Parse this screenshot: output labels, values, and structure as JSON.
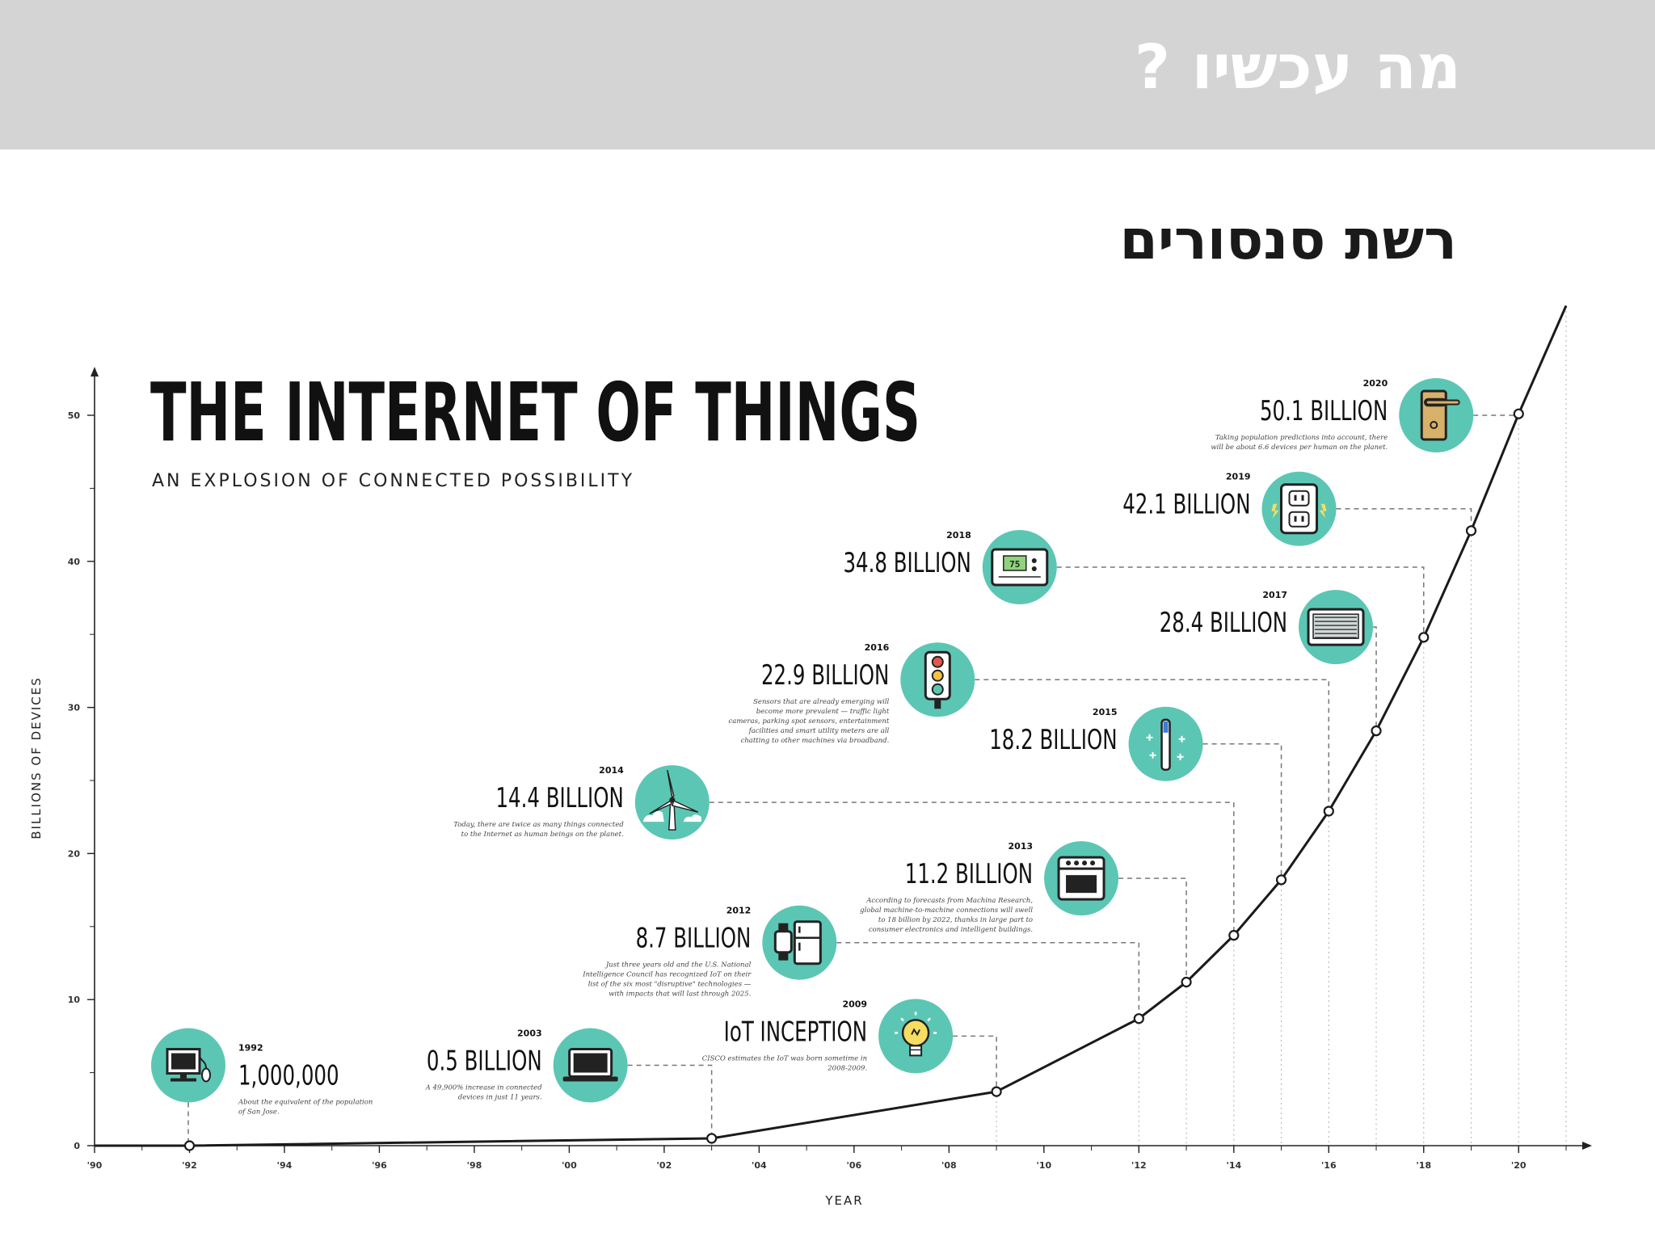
{
  "header": {
    "title": "מה עכשיו ?"
  },
  "slide": {
    "subtitle": "רשת סנסורים"
  },
  "colors": {
    "circle": "#5cc6b4",
    "line": "#1a1a1a",
    "icon_dark": "#222222"
  },
  "chart_data": {
    "type": "line",
    "title": "THE INTERNET OF THINGS",
    "subtitle": "AN EXPLOSION OF CONNECTED POSSIBILITY",
    "xlabel": "YEAR",
    "ylabel": "BILLIONS OF DEVICES",
    "xlim": [
      1990,
      2021
    ],
    "ylim": [
      0,
      50
    ],
    "grid": false,
    "x_ticks": [
      {
        "value": 1990,
        "label": "'90"
      },
      {
        "value": 1992,
        "label": "'92"
      },
      {
        "value": 1994,
        "label": "'94"
      },
      {
        "value": 1996,
        "label": "'96"
      },
      {
        "value": 1998,
        "label": "'98"
      },
      {
        "value": 2000,
        "label": "'00"
      },
      {
        "value": 2002,
        "label": "'02"
      },
      {
        "value": 2004,
        "label": "'04"
      },
      {
        "value": 2006,
        "label": "'06"
      },
      {
        "value": 2008,
        "label": "'08"
      },
      {
        "value": 2010,
        "label": "'10"
      },
      {
        "value": 2012,
        "label": "'12"
      },
      {
        "value": 2014,
        "label": "'14"
      },
      {
        "value": 2016,
        "label": "'16"
      },
      {
        "value": 2018,
        "label": "'18"
      },
      {
        "value": 2020,
        "label": "'20"
      }
    ],
    "y_ticks": [
      {
        "value": 0,
        "label": "0"
      },
      {
        "value": 10,
        "label": "10"
      },
      {
        "value": 20,
        "label": "20"
      },
      {
        "value": 30,
        "label": "30"
      },
      {
        "value": 40,
        "label": "40"
      },
      {
        "value": 50,
        "label": "50"
      }
    ],
    "points": [
      {
        "x": 1992,
        "y": 0.001
      },
      {
        "x": 2003,
        "y": 0.5
      },
      {
        "x": 2009,
        "y": 3.7
      },
      {
        "x": 2012,
        "y": 8.7
      },
      {
        "x": 2013,
        "y": 11.2
      },
      {
        "x": 2014,
        "y": 14.4
      },
      {
        "x": 2015,
        "y": 18.2
      },
      {
        "x": 2016,
        "y": 22.9
      },
      {
        "x": 2017,
        "y": 28.4
      },
      {
        "x": 2018,
        "y": 34.8
      },
      {
        "x": 2019,
        "y": 42.1
      },
      {
        "x": 2020,
        "y": 50.1
      }
    ],
    "line_start": {
      "x": 1990,
      "y": 0
    },
    "line_end": {
      "x": 2021,
      "y": 57.5
    },
    "annotations": [
      {
        "x": 1992,
        "y": 0.001,
        "year": "1992",
        "value": "1,000,000",
        "icon": "computer-icon",
        "side": "right",
        "cy": 5.5,
        "ty": 4.5,
        "note": [
          "About the equivalent of the population",
          "of San Jose."
        ]
      },
      {
        "x": 2003,
        "y": 0.5,
        "year": "2003",
        "value": "0.5 BILLION",
        "icon": "laptop-icon",
        "side": "left",
        "cy": 5.5,
        "ty": 5.5,
        "note": [
          "A 49,900% increase in connected",
          "devices in just 11 years."
        ]
      },
      {
        "x": 2009,
        "y": 3.7,
        "year": "2009",
        "value": "IoT INCEPTION",
        "icon": "lightbulb-icon",
        "side": "left",
        "cy": 7.5,
        "ty": 7.5,
        "note": [
          "CISCO estimates the IoT was born sometime in",
          "2008-2009."
        ]
      },
      {
        "x": 2012,
        "y": 8.7,
        "year": "2012",
        "value": "8.7 BILLION",
        "icon": "smartwatch-fridge-icon",
        "side": "left",
        "cy": 13.9,
        "ty": 13.9,
        "note": [
          "Just three years old and the U.S. National",
          "Intelligence Council has recognized IoT on their",
          "list of the six most \"disruptive\" technologies —",
          "with impacts that will last through 2025."
        ]
      },
      {
        "x": 2013,
        "y": 11.2,
        "year": "2013",
        "value": "11.2 BILLION",
        "icon": "oven-icon",
        "side": "left",
        "cy": 18.3,
        "ty": 18.3,
        "note": [
          "According to forecasts from Machina Research,",
          "global machine-to-machine connections will swell",
          "to 18 billion by 2022, thanks in large part to",
          "consumer electronics and intelligent buildings."
        ]
      },
      {
        "x": 2014,
        "y": 14.4,
        "year": "2014",
        "value": "14.4 BILLION",
        "icon": "wind-turbine-icon",
        "side": "left",
        "cy": 23.5,
        "ty": 23.5,
        "note": [
          "Today, there are twice as many things connected",
          "to the Internet as human beings on the planet."
        ]
      },
      {
        "x": 2015,
        "y": 18.2,
        "year": "2015",
        "value": "18.2 BILLION",
        "icon": "toothbrush-icon",
        "side": "left",
        "cy": 27.5,
        "ty": 27.5,
        "note": []
      },
      {
        "x": 2016,
        "y": 22.9,
        "year": "2016",
        "value": "22.9 BILLION",
        "icon": "traffic-light-icon",
        "side": "left",
        "cy": 31.9,
        "ty": 31.9,
        "note": [
          "Sensors that are already emerging will",
          "become more prevalent — traffic light",
          "cameras, parking spot sensors, entertainment",
          "facilities and smart utility meters are all",
          "chatting to other machines via broadband."
        ]
      },
      {
        "x": 2017,
        "y": 28.4,
        "year": "2017",
        "value": "28.4 BILLION",
        "icon": "air-conditioner-icon",
        "side": "left",
        "cy": 35.5,
        "ty": 35.5,
        "note": []
      },
      {
        "x": 2018,
        "y": 34.8,
        "year": "2018",
        "value": "34.8 BILLION",
        "icon": "thermostat-icon",
        "side": "left",
        "cy": 39.6,
        "ty": 39.6,
        "note": []
      },
      {
        "x": 2019,
        "y": 42.1,
        "year": "2019",
        "value": "42.1 BILLION",
        "icon": "outlet-icon",
        "side": "left",
        "cy": 43.6,
        "ty": 43.6,
        "note": []
      },
      {
        "x": 2020,
        "y": 50.1,
        "year": "2020",
        "value": "50.1 BILLION",
        "icon": "door-handle-icon",
        "side": "left",
        "cy": 50.0,
        "ty": 50.0,
        "note": [
          "Taking population predictions into account, there",
          "will be about 6.6 devices per human on the planet."
        ]
      }
    ],
    "tick_label_small": {
      "thermostat_display": "75"
    }
  }
}
